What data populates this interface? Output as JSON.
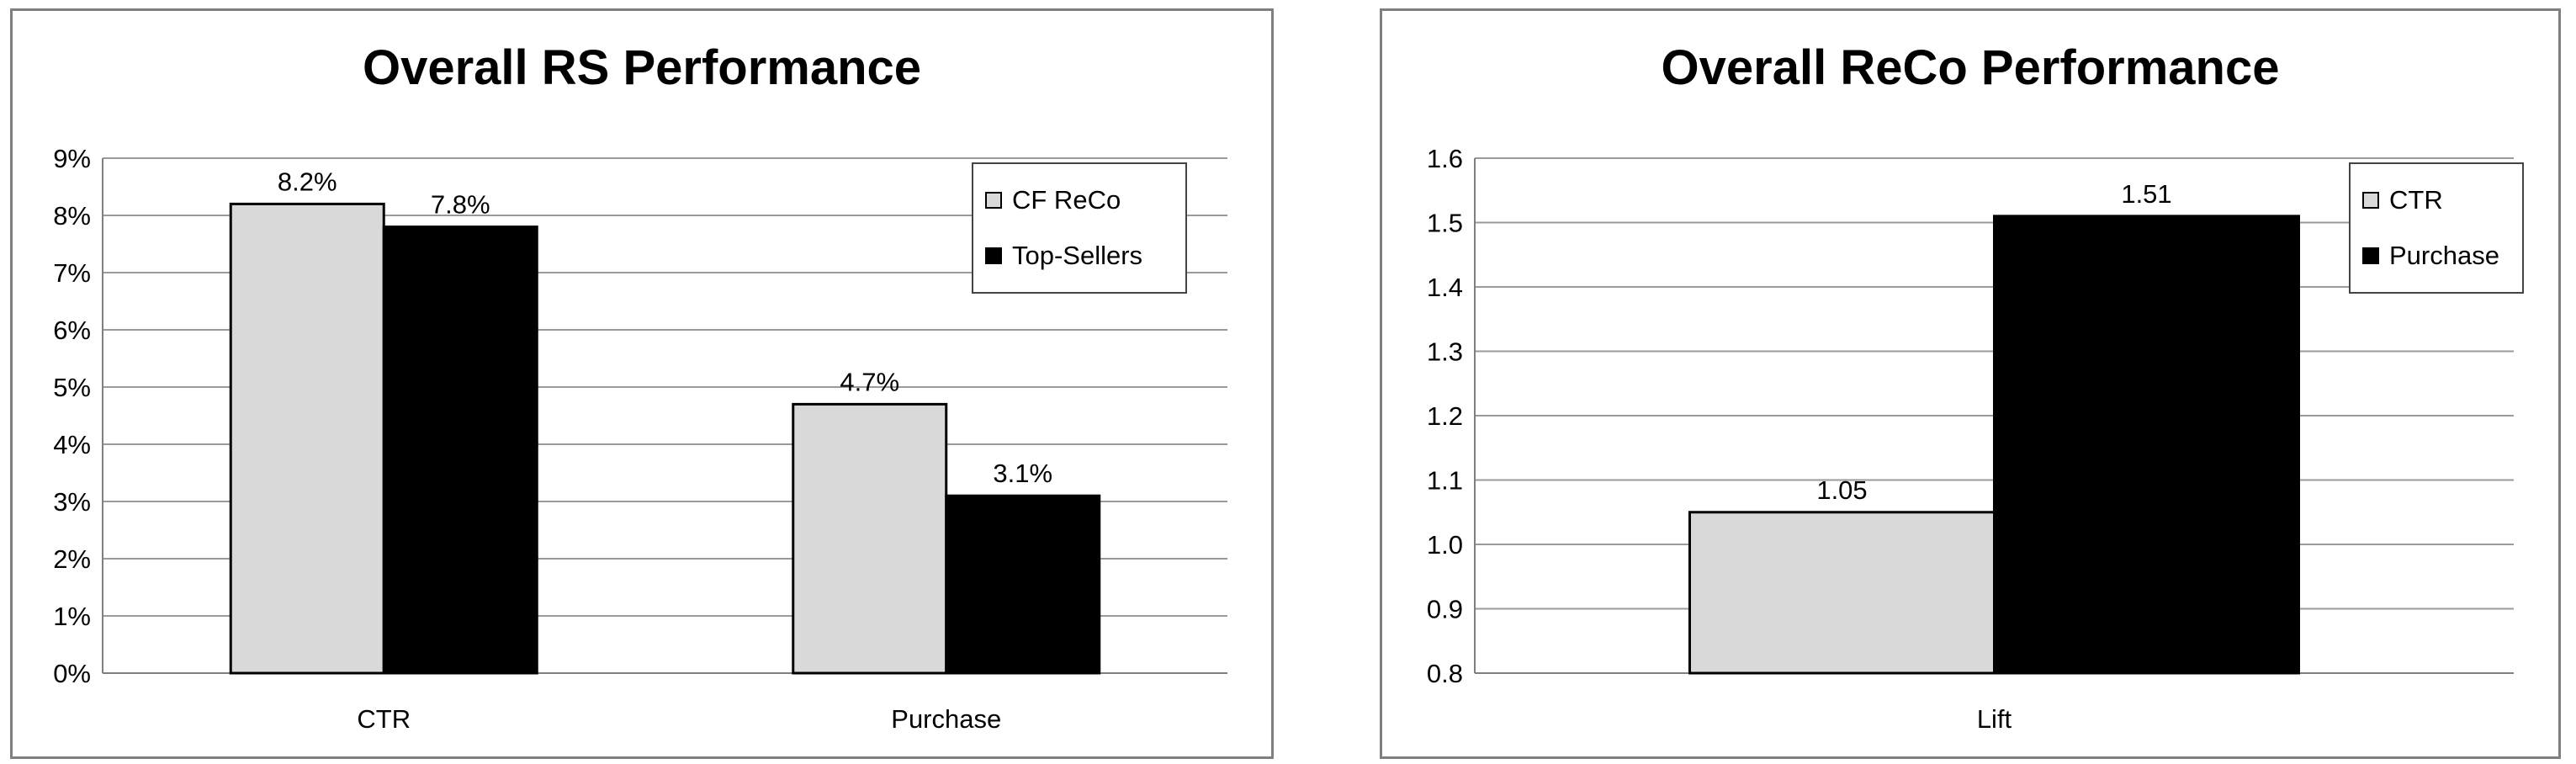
{
  "chart_data": [
    {
      "type": "bar",
      "title": "Overall RS Performance",
      "categories": [
        "CTR",
        "Purchase"
      ],
      "series": [
        {
          "name": "CF ReCo",
          "values": [
            8.2,
            4.7
          ],
          "labels": [
            "8.2%",
            "4.7%"
          ],
          "color": "#d9d9d9"
        },
        {
          "name": "Top-Sellers",
          "values": [
            7.8,
            3.1
          ],
          "labels": [
            "7.8%",
            "3.1%"
          ],
          "color": "#000000"
        }
      ],
      "ylim": [
        0,
        9
      ],
      "yticks": [
        {
          "value": 0,
          "label": "0%"
        },
        {
          "value": 1,
          "label": "1%"
        },
        {
          "value": 2,
          "label": "2%"
        },
        {
          "value": 3,
          "label": "3%"
        },
        {
          "value": 4,
          "label": "4%"
        },
        {
          "value": 5,
          "label": "5%"
        },
        {
          "value": 6,
          "label": "6%"
        },
        {
          "value": 7,
          "label": "7%"
        },
        {
          "value": 8,
          "label": "8%"
        },
        {
          "value": 9,
          "label": "9%"
        }
      ],
      "grid": true,
      "legend": "top-right"
    },
    {
      "type": "bar",
      "title": "Overall ReCo Performance",
      "categories": [
        "Lift"
      ],
      "series": [
        {
          "name": "CTR",
          "values": [
            1.05
          ],
          "labels": [
            "1.05"
          ],
          "color": "#d9d9d9"
        },
        {
          "name": "Purchase",
          "values": [
            1.51
          ],
          "labels": [
            "1.51"
          ],
          "color": "#000000"
        }
      ],
      "ylim": [
        0.8,
        1.6
      ],
      "yticks": [
        {
          "value": 0.8,
          "label": "0.8"
        },
        {
          "value": 0.9,
          "label": "0.9"
        },
        {
          "value": 1.0,
          "label": "1.0"
        },
        {
          "value": 1.1,
          "label": "1.1"
        },
        {
          "value": 1.2,
          "label": "1.2"
        },
        {
          "value": 1.3,
          "label": "1.3"
        },
        {
          "value": 1.4,
          "label": "1.4"
        },
        {
          "value": 1.5,
          "label": "1.5"
        },
        {
          "value": 1.6,
          "label": "1.6"
        }
      ],
      "grid": true,
      "legend": "top-right"
    }
  ]
}
